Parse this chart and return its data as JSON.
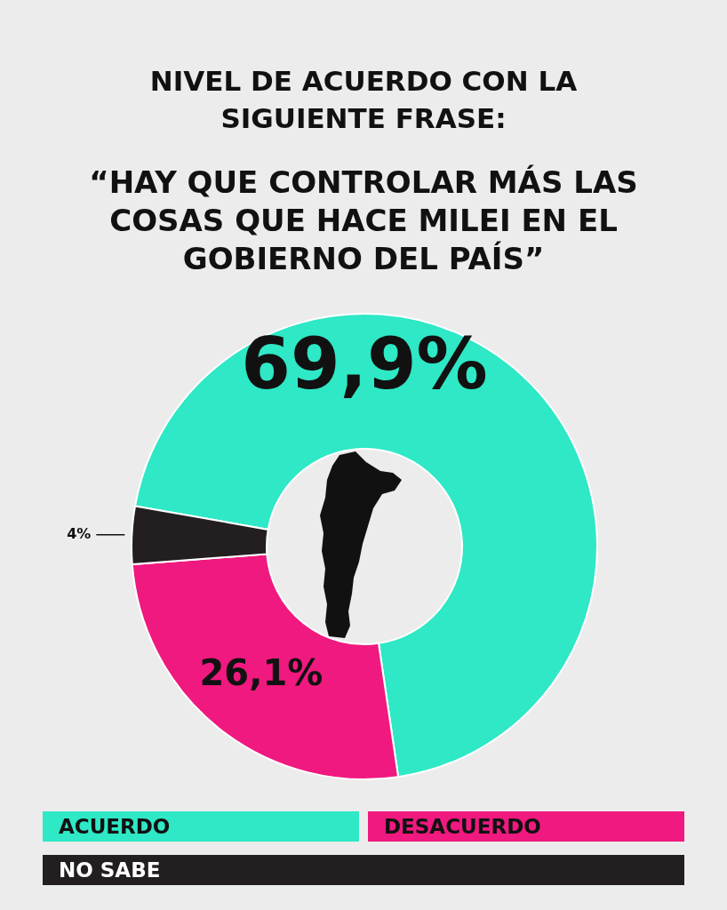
{
  "chart_data": {
    "type": "donut",
    "title": "NIVEL DE ACUERDO CON LA SIGUIENTE FRASE:",
    "subtitle": "“HAY QUE CONTROLAR MÁS LAS COSAS QUE HACE MILEI EN EL GOBIERNO DEL PAÍS”",
    "categories": [
      "ACUERDO",
      "DESACUERDO",
      "NO SABE"
    ],
    "values": [
      69.9,
      26.1,
      4
    ],
    "value_labels": [
      "69,9%",
      "26,1%",
      "4%"
    ],
    "colors": [
      "#2ee8c6",
      "#f0197f",
      "#231f20"
    ],
    "legend": "bottom"
  }
}
